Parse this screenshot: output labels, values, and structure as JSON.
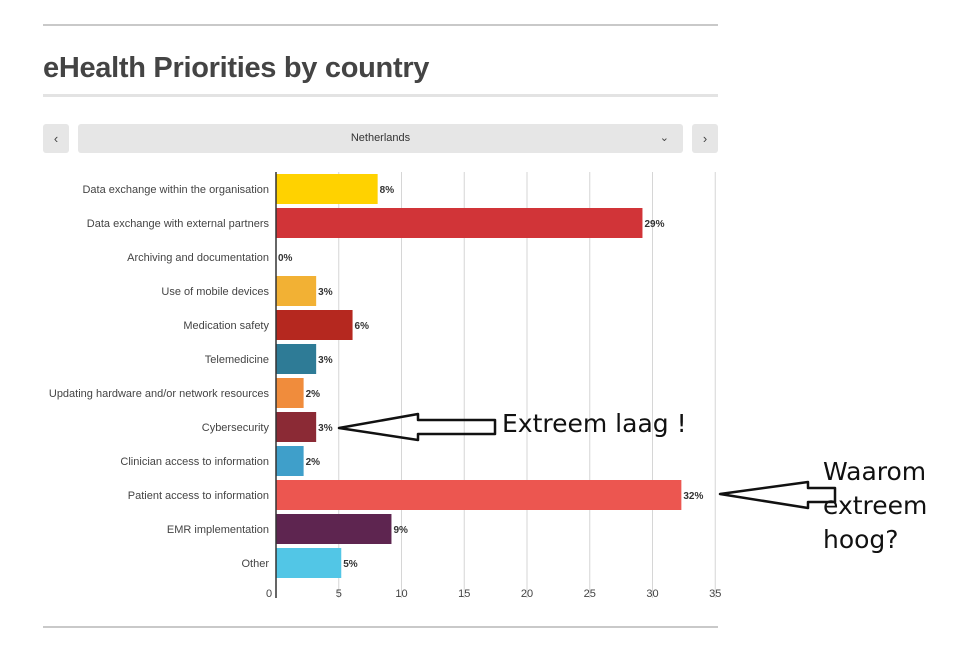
{
  "header": {
    "title": "eHealth Priorities by country"
  },
  "nav": {
    "prev_label": "‹",
    "next_label": "›"
  },
  "selector": {
    "country": "Netherlands",
    "dropdown_icon": "chevron-down-icon"
  },
  "annotations": {
    "low": "Extreem laag !",
    "high": "Waarom\nextreem\nhoog?"
  },
  "chart_data": {
    "type": "bar",
    "orientation": "horizontal",
    "categories": [
      "Data exchange within the organisation",
      "Data exchange with external partners",
      "Archiving and documentation",
      "Use of mobile devices",
      "Medication safety",
      "Telemedicine",
      "Updating hardware and/or network resources",
      "Cybersecurity",
      "Clinician access to information",
      "Patient access to information",
      "EMR implementation",
      "Other"
    ],
    "values": [
      8,
      29,
      0,
      3,
      6,
      3,
      2,
      3,
      2,
      32,
      9,
      5
    ],
    "data_labels": [
      "8%",
      "29%",
      "0%",
      "3%",
      "6%",
      "3%",
      "2%",
      "3%",
      "2%",
      "32%",
      "9%",
      "5%"
    ],
    "bar_values": [
      8.1,
      29.2,
      0,
      3.2,
      6.1,
      3.2,
      2.2,
      3.2,
      2.2,
      32.3,
      9.2,
      5.2
    ],
    "colors": [
      "#ffd200",
      "#d13438",
      "#999999",
      "#f2b134",
      "#b5281f",
      "#2e7b96",
      "#f08c3c",
      "#8b2a35",
      "#3f9fca",
      "#ec5650",
      "#5e2550",
      "#52c6e6"
    ],
    "xticks": [
      0,
      5,
      10,
      15,
      20,
      25,
      30,
      35
    ],
    "xlim": [
      0,
      35
    ],
    "grid": true,
    "legend": "none",
    "title": "",
    "xlabel": "",
    "ylabel": ""
  }
}
